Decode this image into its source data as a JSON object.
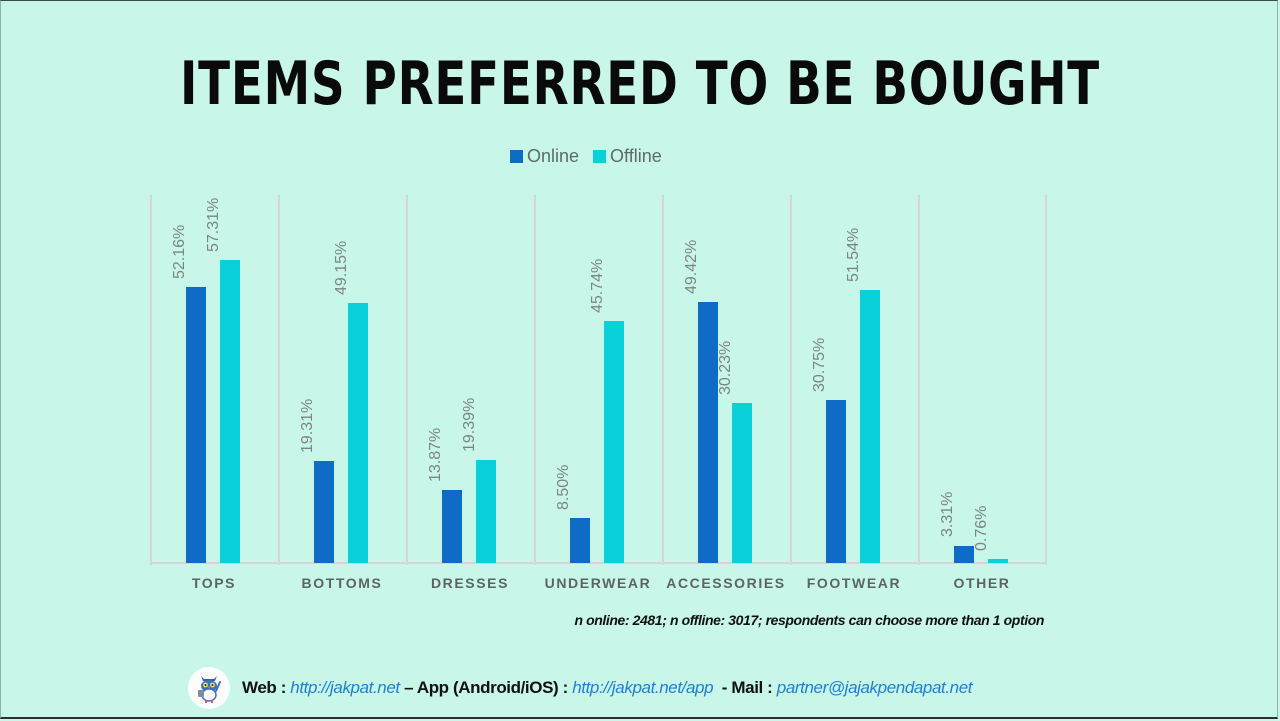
{
  "title": "ITEMS PREFERRED TO BE BOUGHT",
  "legend": [
    {
      "label": "Online",
      "color": "#0f6cc5"
    },
    {
      "label": "Offline",
      "color": "#0ad1d9"
    }
  ],
  "chart_data": {
    "type": "bar",
    "title": "ITEMS PREFERRED TO BE BOUGHT",
    "xlabel": "",
    "ylabel": "",
    "categories": [
      "TOPS",
      "BOTTOMS",
      "DRESSES",
      "UNDERWEAR",
      "ACCESSORIES",
      "FOOTWEAR",
      "OTHER"
    ],
    "series": [
      {
        "name": "Online",
        "color": "#0f6cc5",
        "values": [
          52.16,
          19.31,
          13.87,
          8.5,
          49.42,
          30.75,
          3.31
        ]
      },
      {
        "name": "Offline",
        "color": "#0ad1d9",
        "values": [
          57.31,
          49.15,
          19.39,
          45.74,
          30.23,
          51.54,
          0.76
        ]
      }
    ],
    "data_labels": {
      "Online": [
        "52.16%",
        "19.31%",
        "13.87%",
        "8.50%",
        "49.42%",
        "30.75%",
        "3.31%"
      ],
      "Offline": [
        "57.31%",
        "49.15%",
        "19.39%",
        "45.74%",
        "30.23%",
        "51.54%",
        "0.76%"
      ]
    },
    "ylim": [
      0,
      70
    ],
    "grid": "vertical category separators",
    "legend_position": "top"
  },
  "note": "n online: 2481; n offline: 3017;  respondents can choose more than 1 option",
  "footer": {
    "web_label": "Web :",
    "web_link": "http://jakpat.net",
    "app_label": "– App (Android/iOS) :",
    "app_link": "http://jakpat.net/app",
    "mail_label": "- Mail :",
    "mail_link": "partner@jajakpendapat.net",
    "logo_icon": "owl-mascot-icon"
  }
}
